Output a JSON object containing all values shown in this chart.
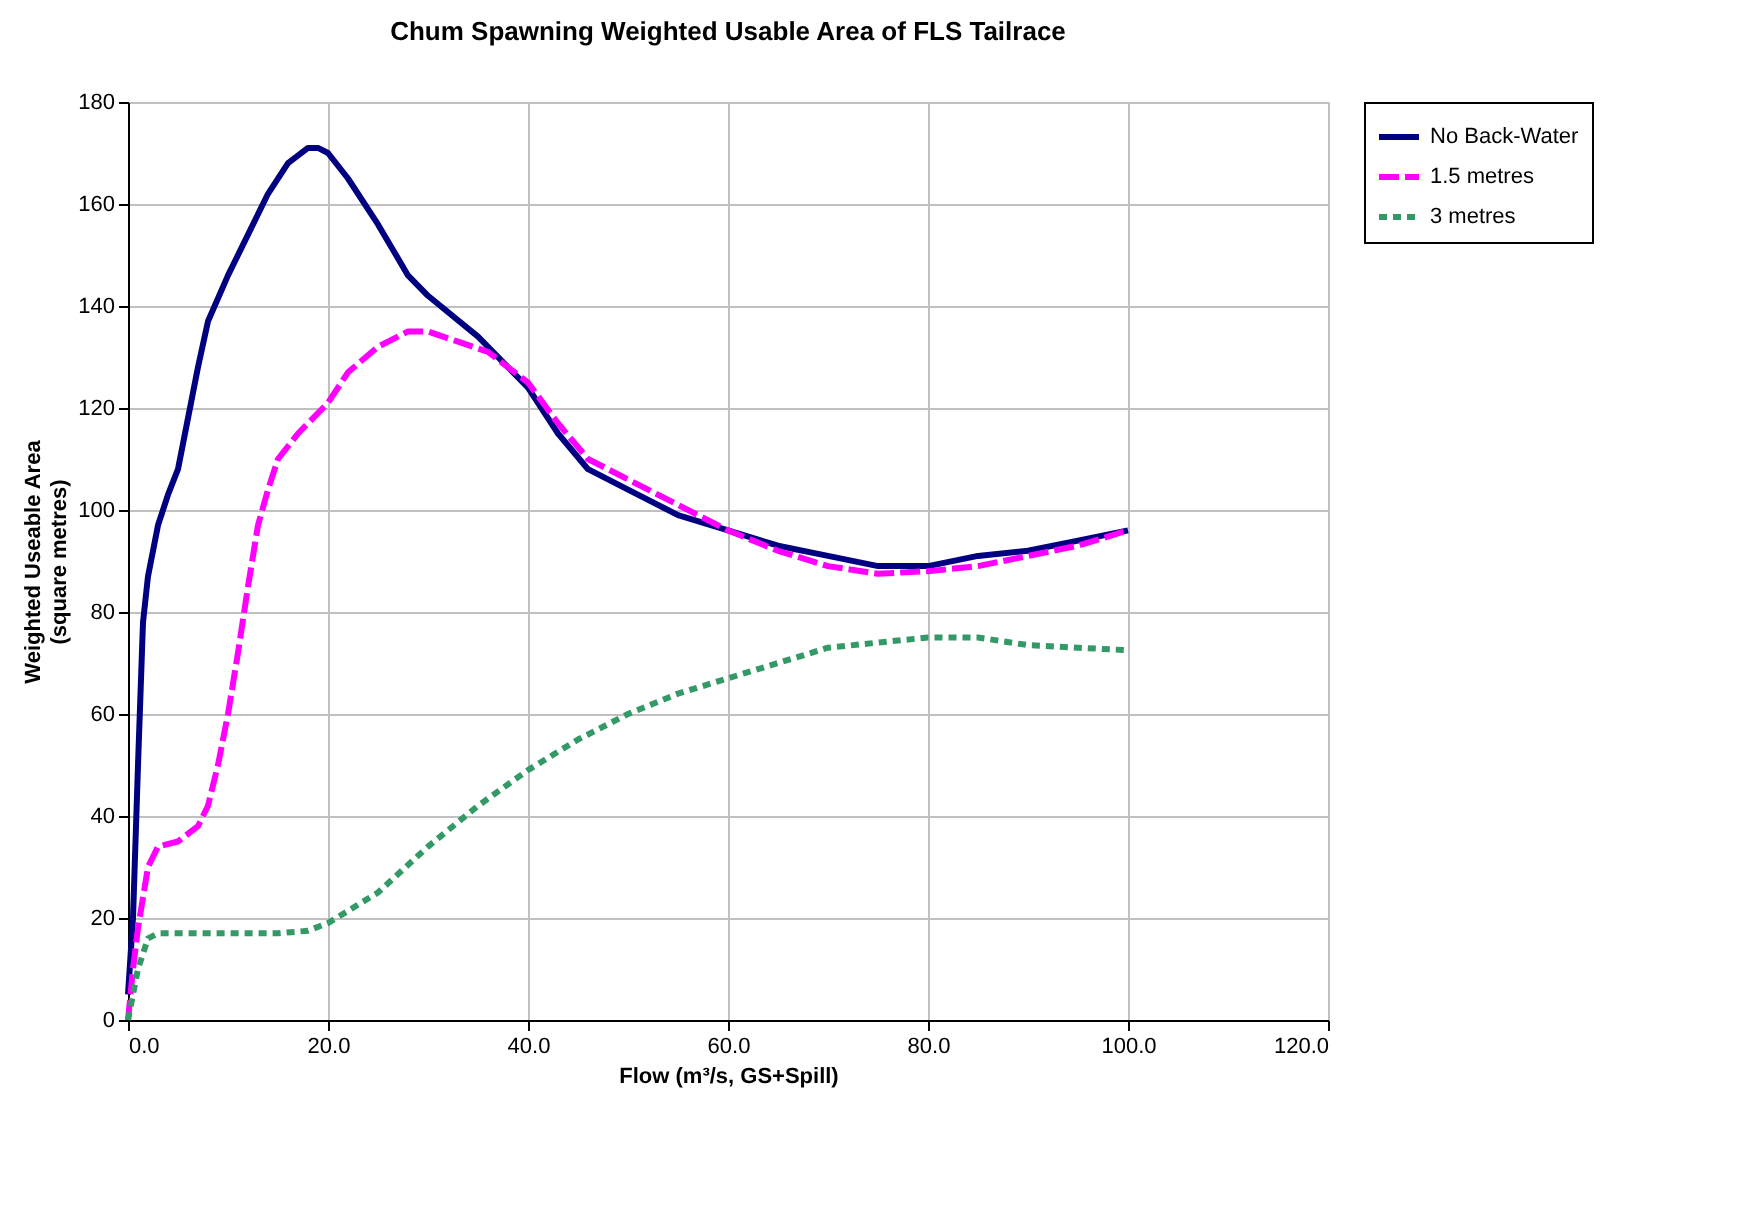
{
  "chart_data": {
    "type": "line",
    "title": "Chum Spawning Weighted Usable Area of FLS Tailrace",
    "xlabel": "Flow (m³/s, GS+Spill)",
    "ylabel": "Weighted Useable Area\n(square metres)",
    "xlim": [
      0,
      120
    ],
    "xticks": [
      {
        "value": 0,
        "label": "0.0"
      },
      {
        "value": 20,
        "label": "20.0"
      },
      {
        "value": 40,
        "label": "40.0"
      },
      {
        "value": 60,
        "label": "60.0"
      },
      {
        "value": 80,
        "label": "80.0"
      },
      {
        "value": 100,
        "label": "100.0"
      },
      {
        "value": 120,
        "label": "120.0"
      }
    ],
    "ylim": [
      0,
      180
    ],
    "yticks": [
      0,
      20,
      40,
      60,
      80,
      100,
      120,
      140,
      160,
      180
    ],
    "grid": true,
    "legend": "right",
    "marker": "none",
    "series": [
      {
        "name": "No Back-Water",
        "color": "#000080",
        "line_style": "solid",
        "x": [
          0,
          0.5,
          1,
          1.5,
          2,
          3,
          4,
          5,
          6,
          7,
          8,
          10,
          12,
          14,
          16,
          18,
          19,
          20,
          22,
          25,
          28,
          30,
          35,
          40,
          43,
          46,
          50,
          55,
          60,
          65,
          70,
          75,
          80,
          85,
          90,
          95,
          100
        ],
        "values": [
          5,
          20,
          50,
          78,
          87,
          97,
          103,
          108,
          118,
          128,
          137,
          146,
          154,
          162,
          168,
          171,
          171,
          170,
          165,
          156,
          146,
          142,
          134,
          124,
          115,
          108,
          104,
          99,
          96,
          93,
          91,
          89,
          89,
          91,
          92,
          94,
          96
        ]
      },
      {
        "name": "1.5 metres",
        "color": "#ff00ff",
        "line_style": "dashed",
        "x": [
          0,
          0.5,
          1,
          2,
          3,
          5,
          7,
          8,
          9,
          10,
          11,
          12,
          13,
          14,
          15,
          17,
          20,
          22,
          25,
          28,
          30,
          33,
          36,
          40,
          43,
          46,
          50,
          55,
          60,
          65,
          70,
          75,
          80,
          85,
          90,
          95,
          100
        ],
        "values": [
          0,
          10,
          18,
          30,
          34,
          35,
          38,
          42,
          50,
          60,
          72,
          85,
          97,
          104,
          110,
          115,
          121,
          127,
          132,
          135,
          135,
          133,
          131,
          125,
          117,
          110,
          106,
          101,
          96,
          92,
          89,
          87.5,
          88,
          89,
          91,
          93,
          96
        ]
      },
      {
        "name": "3 metres",
        "color": "#339966",
        "line_style": "dotted",
        "x": [
          0,
          0.5,
          1,
          2,
          3,
          5,
          10,
          15,
          18,
          20,
          25,
          30,
          35,
          40,
          45,
          50,
          55,
          60,
          65,
          70,
          75,
          80,
          85,
          90,
          95,
          100
        ],
        "values": [
          0,
          5,
          10,
          16,
          17,
          17,
          17,
          17,
          17.5,
          19,
          25,
          34,
          42,
          49,
          55,
          60,
          64,
          67,
          70,
          73,
          74,
          75,
          75,
          73.5,
          73,
          72.5
        ]
      }
    ]
  }
}
